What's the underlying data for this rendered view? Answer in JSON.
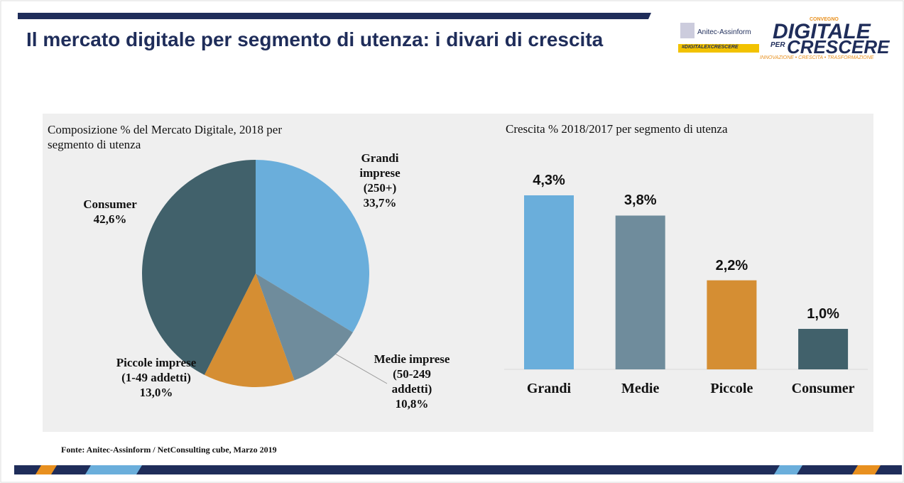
{
  "header": {
    "title": "Il mercato digitale per segmento di utenza: i divari di crescita",
    "logos": {
      "assinform": "Anitec-Assinform",
      "hashtag": "#DIGITALEXCRESCERE",
      "convegno": "CONVEGNO",
      "digitale": "DIGITALE",
      "per": "PER",
      "crescere": "CRESCERE",
      "tagline": "INNOVAZIONE • CRESCITA • TRASFORMAZIONE"
    }
  },
  "chart_data": [
    {
      "type": "pie",
      "title": "Composizione % del Mercato Digitale, 2018 per segmento di utenza",
      "categories": [
        "Grandi imprese (250+)",
        "Medie imprese (50-249 addetti)",
        "Piccole imprese (1-49 addetti)",
        "Consumer"
      ],
      "values": [
        33.7,
        10.8,
        13.0,
        42.6
      ],
      "value_labels": [
        "33,7%",
        "10,8%",
        "13,0%",
        "42,6%"
      ],
      "colors": [
        "#6aaedb",
        "#6f8c9c",
        "#d58e33",
        "#41616b"
      ]
    },
    {
      "type": "bar",
      "title": "Crescita % 2018/2017 per segmento di utenza",
      "categories": [
        "Grandi",
        "Medie",
        "Piccole",
        "Consumer"
      ],
      "values": [
        4.3,
        3.8,
        2.2,
        1.0
      ],
      "value_labels": [
        "4,3%",
        "3,8%",
        "2,2%",
        "1,0%"
      ],
      "colors": [
        "#6aaedb",
        "#6f8c9c",
        "#d58e33",
        "#41616b"
      ]
    }
  ],
  "footer": {
    "source": "Fonte: Anitec-Assinform / NetConsulting cube, Marzo 2019"
  }
}
